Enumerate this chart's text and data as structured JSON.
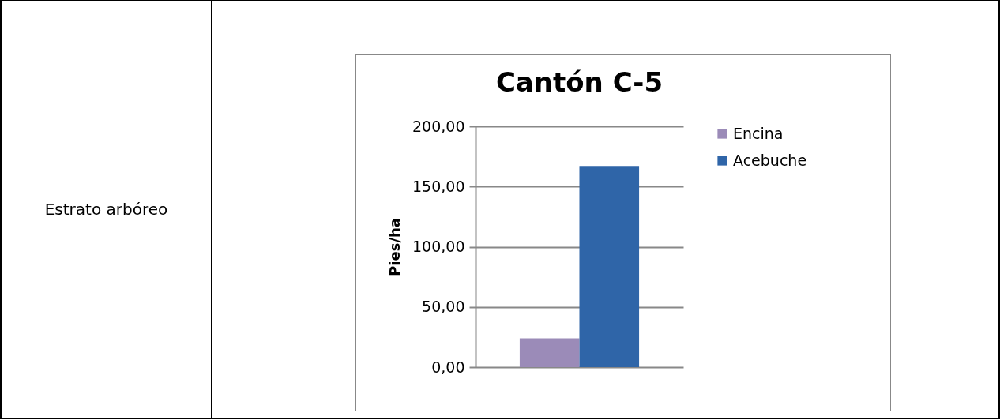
{
  "chart_data": {
    "type": "bar",
    "title": "Cantón C-5",
    "ylabel": "Pies/ha",
    "annotations": [
      "Estrato arbóreo"
    ],
    "categories": [
      null
    ],
    "series": [
      {
        "name": "Encina",
        "color": "#9b8bb8",
        "values": [
          24
        ]
      },
      {
        "name": "Acebuche",
        "color": "#2f65a8",
        "values": [
          167
        ]
      }
    ],
    "ylim": [
      0,
      200
    ],
    "yticks": [
      {
        "value": 0,
        "label": "0,00"
      },
      {
        "value": 50,
        "label": "50,00"
      },
      {
        "value": 100,
        "label": "100,00"
      },
      {
        "value": 150,
        "label": "150,00"
      },
      {
        "value": 200,
        "label": "200,00"
      }
    ],
    "grid": "y",
    "legend": "right"
  }
}
